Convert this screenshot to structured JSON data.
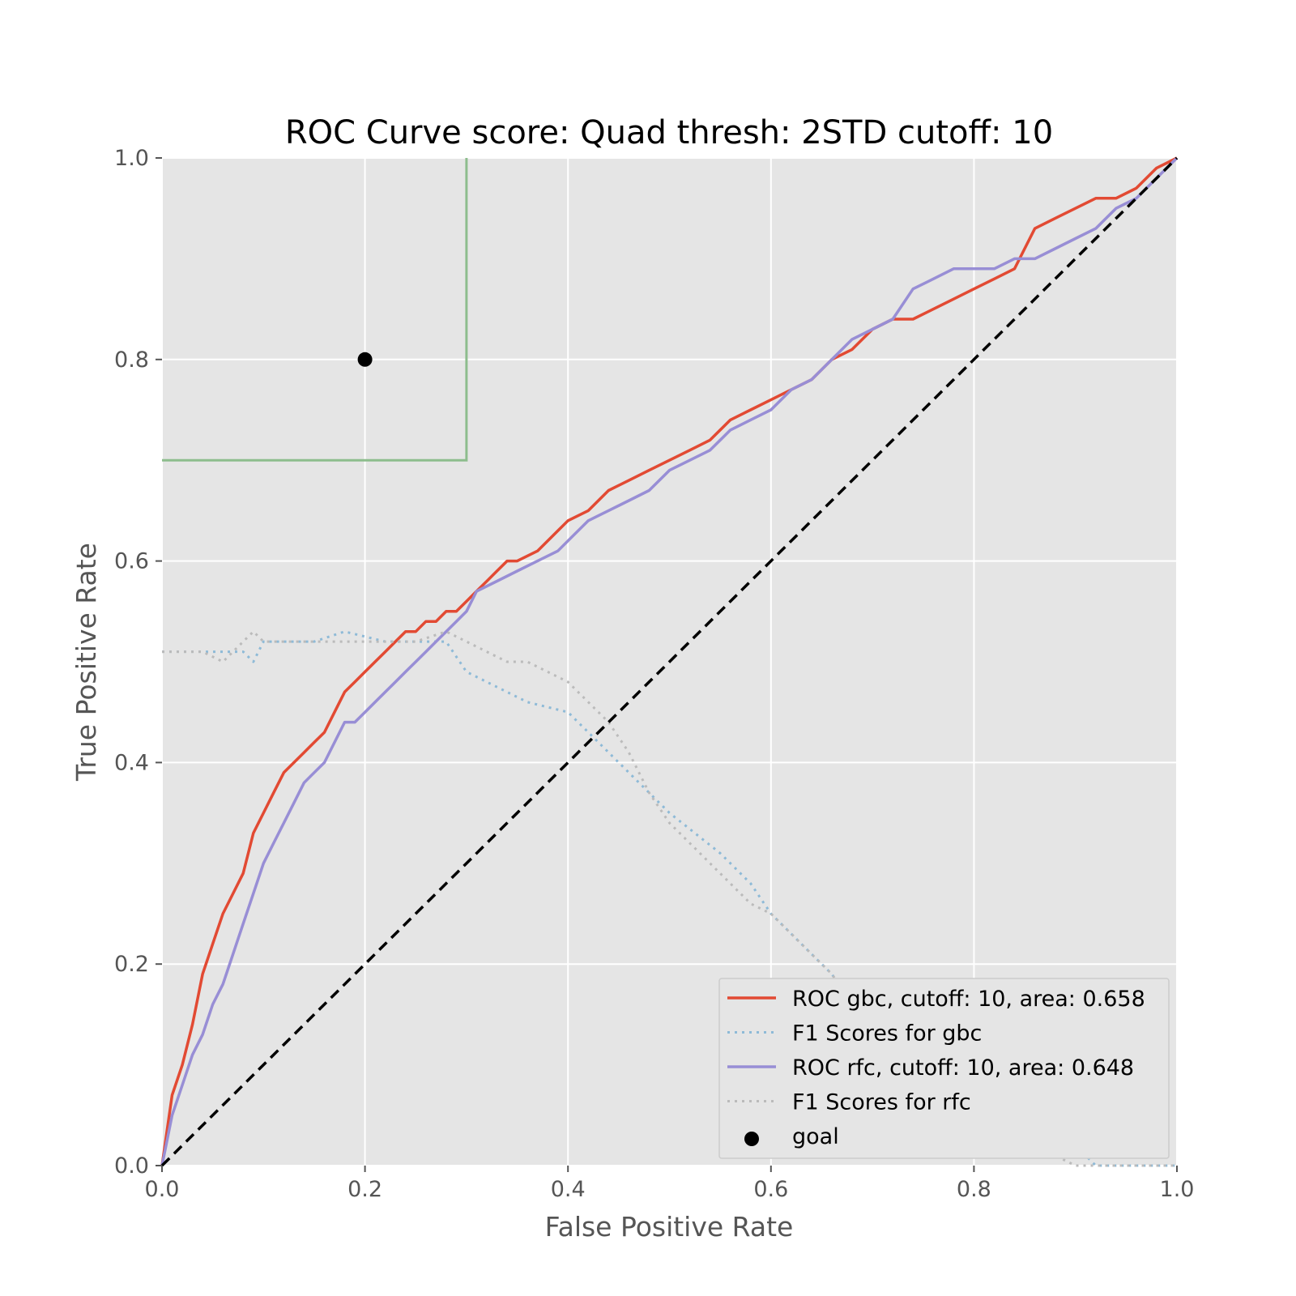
{
  "chart_data": {
    "type": "line",
    "title": "ROC Curve score: Quad thresh: 2STD cutoff: 10",
    "xlabel": "False Positive Rate",
    "ylabel": "True Positive Rate",
    "xlim": [
      0.0,
      1.0
    ],
    "ylim": [
      0.0,
      1.0
    ],
    "xticks": [
      "0.0",
      "0.2",
      "0.4",
      "0.6",
      "0.8",
      "1.0"
    ],
    "yticks": [
      "0.0",
      "0.2",
      "0.4",
      "0.6",
      "0.8",
      "1.0"
    ],
    "grid": true,
    "legend_position": "lower-right",
    "background": "#e5e5e5",
    "series": [
      {
        "name": "ROC gbc, cutoff: 10, area: 0.658",
        "style": "solid",
        "color": "#e24a33",
        "x": [
          0.0,
          0.01,
          0.02,
          0.03,
          0.04,
          0.05,
          0.06,
          0.07,
          0.08,
          0.09,
          0.1,
          0.11,
          0.12,
          0.13,
          0.14,
          0.15,
          0.16,
          0.17,
          0.18,
          0.19,
          0.2,
          0.21,
          0.22,
          0.23,
          0.24,
          0.25,
          0.26,
          0.27,
          0.28,
          0.29,
          0.3,
          0.31,
          0.32,
          0.33,
          0.34,
          0.35,
          0.37,
          0.39,
          0.4,
          0.42,
          0.44,
          0.46,
          0.48,
          0.5,
          0.52,
          0.54,
          0.56,
          0.58,
          0.6,
          0.62,
          0.64,
          0.66,
          0.68,
          0.7,
          0.72,
          0.74,
          0.76,
          0.78,
          0.8,
          0.82,
          0.84,
          0.86,
          0.88,
          0.9,
          0.92,
          0.94,
          0.96,
          0.98,
          1.0
        ],
        "y": [
          0.0,
          0.07,
          0.1,
          0.14,
          0.19,
          0.22,
          0.25,
          0.27,
          0.29,
          0.33,
          0.35,
          0.37,
          0.39,
          0.4,
          0.41,
          0.42,
          0.43,
          0.45,
          0.47,
          0.48,
          0.49,
          0.5,
          0.51,
          0.52,
          0.53,
          0.53,
          0.54,
          0.54,
          0.55,
          0.55,
          0.56,
          0.57,
          0.58,
          0.59,
          0.6,
          0.6,
          0.61,
          0.63,
          0.64,
          0.65,
          0.67,
          0.68,
          0.69,
          0.7,
          0.71,
          0.72,
          0.74,
          0.75,
          0.76,
          0.77,
          0.78,
          0.8,
          0.81,
          0.83,
          0.84,
          0.84,
          0.85,
          0.86,
          0.87,
          0.88,
          0.89,
          0.93,
          0.94,
          0.95,
          0.96,
          0.96,
          0.97,
          0.99,
          1.0
        ]
      },
      {
        "name": "F1 Scores for gbc",
        "style": "dotted",
        "color": "#8eba d7",
        "x": [
          0.0,
          0.05,
          0.08,
          0.09,
          0.1,
          0.12,
          0.15,
          0.18,
          0.22,
          0.26,
          0.28,
          0.3,
          0.32,
          0.36,
          0.4,
          0.42,
          0.45,
          0.48,
          0.5,
          0.55,
          0.58,
          0.6,
          0.62,
          0.64,
          0.66,
          0.68,
          0.7,
          0.73,
          0.76,
          0.8,
          0.84,
          0.88,
          0.9,
          0.92,
          0.95,
          1.0
        ],
        "y": [
          0.51,
          0.51,
          0.51,
          0.5,
          0.52,
          0.52,
          0.52,
          0.53,
          0.52,
          0.52,
          0.52,
          0.49,
          0.48,
          0.46,
          0.45,
          0.43,
          0.4,
          0.37,
          0.35,
          0.31,
          0.28,
          0.25,
          0.23,
          0.21,
          0.19,
          0.16,
          0.13,
          0.1,
          0.07,
          0.05,
          0.04,
          0.02,
          0.02,
          0.0,
          0.0,
          0.0
        ]
      },
      {
        "name": "ROC rfc, cutoff: 10, area: 0.648",
        "style": "solid",
        "color": "#988ed5",
        "x": [
          0.0,
          0.01,
          0.02,
          0.03,
          0.04,
          0.05,
          0.06,
          0.07,
          0.08,
          0.09,
          0.1,
          0.11,
          0.12,
          0.13,
          0.14,
          0.15,
          0.16,
          0.17,
          0.18,
          0.19,
          0.2,
          0.21,
          0.22,
          0.23,
          0.24,
          0.25,
          0.26,
          0.27,
          0.28,
          0.29,
          0.3,
          0.31,
          0.33,
          0.35,
          0.37,
          0.39,
          0.4,
          0.42,
          0.44,
          0.46,
          0.48,
          0.5,
          0.52,
          0.54,
          0.56,
          0.58,
          0.6,
          0.62,
          0.64,
          0.66,
          0.68,
          0.7,
          0.72,
          0.74,
          0.76,
          0.78,
          0.8,
          0.82,
          0.84,
          0.86,
          0.88,
          0.9,
          0.92,
          0.94,
          0.96,
          0.98,
          1.0
        ],
        "y": [
          0.0,
          0.05,
          0.08,
          0.11,
          0.13,
          0.16,
          0.18,
          0.21,
          0.24,
          0.27,
          0.3,
          0.32,
          0.34,
          0.36,
          0.38,
          0.39,
          0.4,
          0.42,
          0.44,
          0.44,
          0.45,
          0.46,
          0.47,
          0.48,
          0.49,
          0.5,
          0.51,
          0.52,
          0.53,
          0.54,
          0.55,
          0.57,
          0.58,
          0.59,
          0.6,
          0.61,
          0.62,
          0.64,
          0.65,
          0.66,
          0.67,
          0.69,
          0.7,
          0.71,
          0.73,
          0.74,
          0.75,
          0.77,
          0.78,
          0.8,
          0.82,
          0.83,
          0.84,
          0.87,
          0.88,
          0.89,
          0.89,
          0.89,
          0.9,
          0.9,
          0.91,
          0.92,
          0.93,
          0.95,
          0.96,
          0.98,
          1.0
        ]
      },
      {
        "name": "F1 Scores for rfc",
        "style": "dotted",
        "color": "#bbbbbb",
        "x": [
          0.0,
          0.04,
          0.06,
          0.08,
          0.09,
          0.1,
          0.12,
          0.15,
          0.2,
          0.25,
          0.28,
          0.3,
          0.32,
          0.34,
          0.36,
          0.38,
          0.4,
          0.42,
          0.44,
          0.46,
          0.48,
          0.5,
          0.52,
          0.54,
          0.56,
          0.58,
          0.6,
          0.62,
          0.64,
          0.66,
          0.68,
          0.7,
          0.73,
          0.76,
          0.8,
          0.84,
          0.88,
          0.9,
          0.95,
          1.0
        ],
        "y": [
          0.51,
          0.51,
          0.5,
          0.52,
          0.53,
          0.52,
          0.52,
          0.52,
          0.52,
          0.52,
          0.53,
          0.52,
          0.51,
          0.5,
          0.5,
          0.49,
          0.48,
          0.46,
          0.44,
          0.41,
          0.37,
          0.34,
          0.32,
          0.3,
          0.28,
          0.26,
          0.25,
          0.23,
          0.21,
          0.19,
          0.16,
          0.14,
          0.11,
          0.08,
          0.06,
          0.04,
          0.01,
          0.0,
          0.0,
          0.0
        ]
      }
    ],
    "goal": {
      "name": "goal",
      "x": 0.2,
      "y": 0.8,
      "color": "#000000"
    },
    "region": {
      "x_max": 0.3,
      "y_min": 0.7,
      "color": "#8dbd8d"
    },
    "diagonal": {
      "x": [
        0.0,
        1.0
      ],
      "y": [
        0.0,
        1.0
      ],
      "color": "#000000",
      "style": "dashed"
    }
  }
}
